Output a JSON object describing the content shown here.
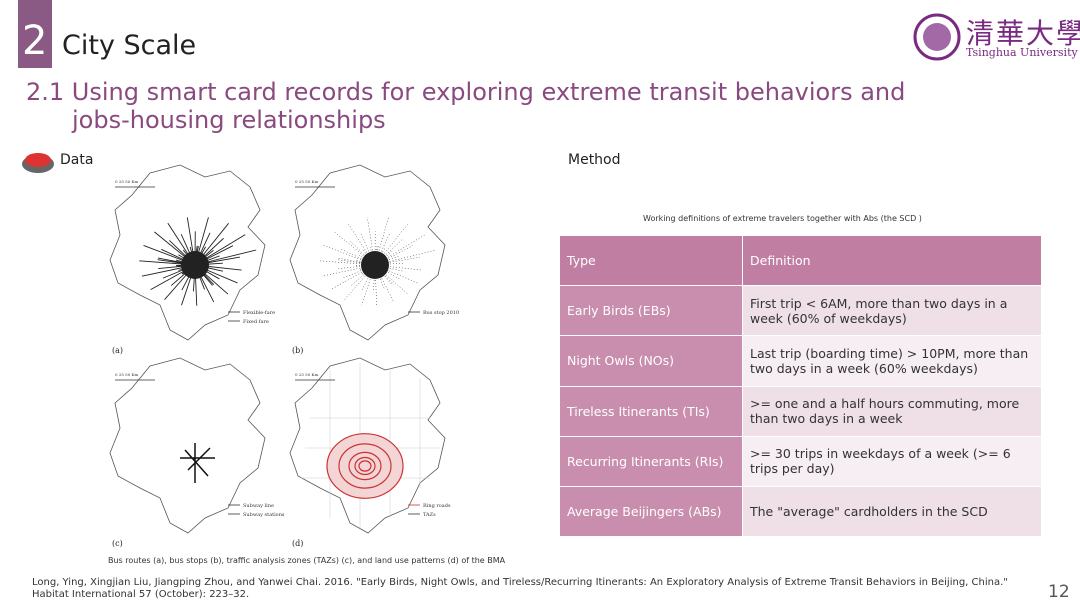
{
  "header": {
    "section_number": "2",
    "title": "City Scale",
    "logo_chinese": "清華大學",
    "logo_english": "Tsinghua University"
  },
  "subtitle": {
    "line1": "2.1 Using smart card records for exploring extreme transit behaviors and",
    "line2": "jobs-housing relationships"
  },
  "data_section": {
    "label": "Data",
    "maps": [
      {
        "panel": "(a)",
        "scale": "0     25     50 Km",
        "legend": [
          "Flexible-fare",
          "Fixed fare"
        ]
      },
      {
        "panel": "(b)",
        "scale": "0     25     50 Km",
        "legend": [
          "Bus stop 2010"
        ]
      },
      {
        "panel": "(c)",
        "scale": "0     25     50 Km",
        "legend": [
          "Subway line",
          "Subway stations"
        ]
      },
      {
        "panel": "(d)",
        "scale": "0     25     50 Km",
        "legend": [
          "Ring roads",
          "TAZs"
        ]
      }
    ],
    "caption": "Bus routes (a), bus stops (b), traffic analysis zones (TAZs) (c), and land use patterns (d) of the BMA"
  },
  "method_section": {
    "label": "Method",
    "table_caption": "Working definitions of extreme travelers together with Abs (the SCD )",
    "table": {
      "header": [
        "Type",
        "Definition"
      ],
      "rows": [
        [
          "Early Birds (EBs)",
          "First trip < 6AM, more than two days in a week (60% of weekdays)"
        ],
        [
          "Night Owls (NOs)",
          "Last trip (boarding time) > 10PM, more than two days in a week (60% weekdays)"
        ],
        [
          "Tireless Itinerants (TIs)",
          ">= one and a half hours commuting, more than two days in a week"
        ],
        [
          "Recurring Itinerants (RIs)",
          ">= 30 trips in weekdays of a week (>= 6 trips per day)"
        ],
        [
          "Average Beijingers (ABs)",
          "The \"average\" cardholders in the SCD"
        ]
      ]
    }
  },
  "reference": "Long, Ying, Xingjian Liu, Jiangping Zhou, and Yanwei Chai. 2016. \"Early Birds, Night Owls, and Tireless/Recurring Itinerants: An Exploratory Analysis of Extreme Transit Behaviors in Beijing, China.\" Habitat International 57 (October): 223–32.",
  "page_number": "12"
}
